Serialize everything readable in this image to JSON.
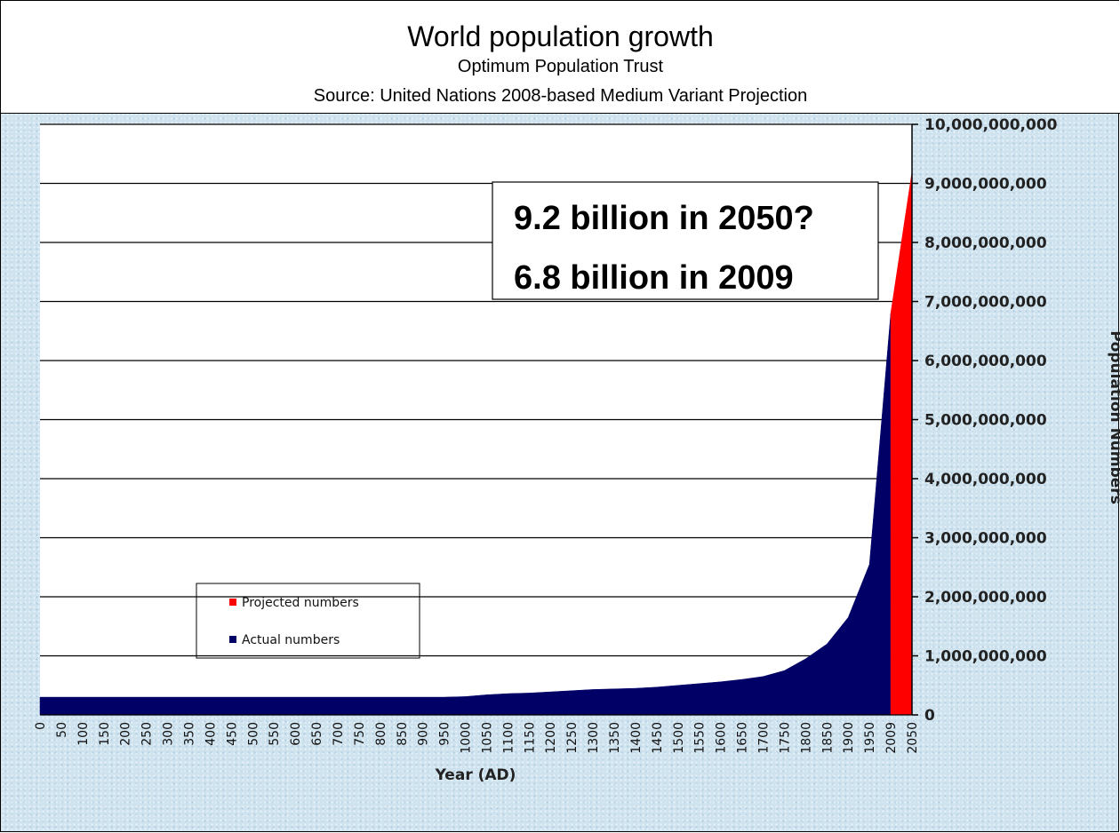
{
  "header": {
    "title": "World population growth",
    "subtitle": "Optimum Population Trust",
    "source": "Source: United Nations 2008-based Medium Variant Projection"
  },
  "chart_data": {
    "type": "area",
    "title": "World population growth",
    "subtitle": "Optimum Population Trust",
    "xlabel": "Year (AD)",
    "ylabel": "Population Numbers",
    "ylim": [
      0,
      10000000000
    ],
    "y_ticks": [
      "0",
      "1,000,000,000",
      "2,000,000,000",
      "3,000,000,000",
      "4,000,000,000",
      "5,000,000,000",
      "6,000,000,000",
      "7,000,000,000",
      "8,000,000,000",
      "9,000,000,000",
      "10,000,000,000"
    ],
    "categories": [
      "0",
      "50",
      "100",
      "150",
      "200",
      "250",
      "300",
      "350",
      "400",
      "450",
      "500",
      "550",
      "600",
      "650",
      "700",
      "750",
      "800",
      "850",
      "900",
      "950",
      "1000",
      "1050",
      "1100",
      "1150",
      "1200",
      "1250",
      "1300",
      "1350",
      "1400",
      "1450",
      "1500",
      "1550",
      "1600",
      "1650",
      "1700",
      "1750",
      "1800",
      "1850",
      "1900",
      "1950",
      "2009",
      "2050"
    ],
    "series": [
      {
        "name": "Actual numbers",
        "color": "#000066",
        "x": [
          0,
          50,
          100,
          150,
          200,
          250,
          300,
          350,
          400,
          450,
          500,
          550,
          600,
          650,
          700,
          750,
          800,
          850,
          900,
          950,
          1000,
          1050,
          1100,
          1150,
          1200,
          1250,
          1300,
          1350,
          1400,
          1450,
          1500,
          1550,
          1600,
          1650,
          1700,
          1750,
          1800,
          1850,
          1900,
          1950,
          2009
        ],
        "values": [
          300000000,
          300000000,
          300000000,
          300000000,
          300000000,
          300000000,
          300000000,
          300000000,
          300000000,
          300000000,
          300000000,
          300000000,
          300000000,
          300000000,
          300000000,
          300000000,
          300000000,
          300000000,
          300000000,
          300000000,
          310000000,
          340000000,
          360000000,
          370000000,
          390000000,
          410000000,
          430000000,
          440000000,
          450000000,
          470000000,
          500000000,
          530000000,
          560000000,
          600000000,
          650000000,
          750000000,
          950000000,
          1200000000,
          1650000000,
          2550000000,
          6800000000
        ]
      },
      {
        "name": "Projected numbers",
        "color": "#ff0000",
        "x": [
          2009,
          2050
        ],
        "values": [
          6800000000,
          9200000000
        ]
      }
    ],
    "legend": {
      "position": "lower-left",
      "entries": [
        "Projected numbers",
        "Actual numbers"
      ]
    },
    "grid": true,
    "annotations": [
      "9.2 billion in 2050?",
      "6.8 billion in 2009"
    ]
  }
}
